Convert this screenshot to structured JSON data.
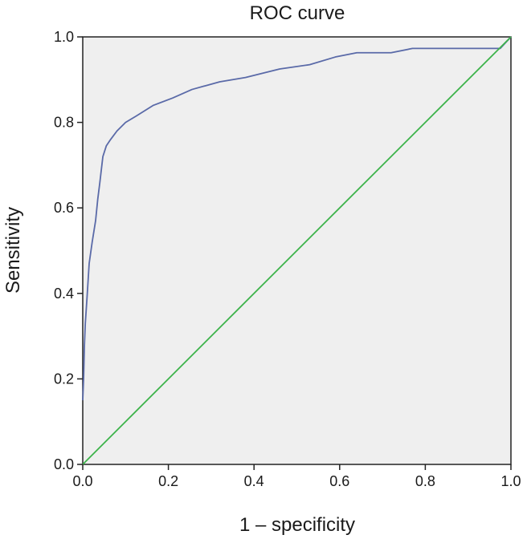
{
  "chart_data": {
    "type": "line",
    "title": "ROC curve",
    "xlabel": "1 – specificity",
    "ylabel": "Sensitivity",
    "xlim": [
      0.0,
      1.0
    ],
    "ylim": [
      0.0,
      1.0
    ],
    "xticks": [
      "0.0",
      "0.2",
      "0.4",
      "0.6",
      "0.8",
      "1.0"
    ],
    "yticks": [
      "0.0",
      "0.2",
      "0.4",
      "0.6",
      "0.8",
      "1.0"
    ],
    "grid": false,
    "background": "#efefef",
    "series": [
      {
        "color": "#5a6aa8",
        "x": [
          0.0,
          0.002,
          0.004,
          0.006,
          0.01,
          0.015,
          0.022,
          0.03,
          0.035,
          0.04,
          0.047,
          0.055,
          0.065,
          0.08,
          0.1,
          0.125,
          0.165,
          0.21,
          0.255,
          0.32,
          0.38,
          0.46,
          0.53,
          0.59,
          0.64,
          0.72,
          0.77,
          0.82,
          0.88,
          0.93,
          0.975,
          1.0
        ],
        "y": [
          0.15,
          0.2,
          0.28,
          0.33,
          0.39,
          0.47,
          0.52,
          0.57,
          0.62,
          0.66,
          0.72,
          0.745,
          0.76,
          0.78,
          0.8,
          0.815,
          0.84,
          0.857,
          0.877,
          0.895,
          0.905,
          0.925,
          0.935,
          0.953,
          0.963,
          0.963,
          0.973,
          0.973,
          0.973,
          0.973,
          0.973,
          1.0
        ]
      },
      {
        "color": "#3cb34a",
        "x": [
          0.0,
          1.0
        ],
        "y": [
          0.0,
          1.0
        ]
      }
    ]
  }
}
